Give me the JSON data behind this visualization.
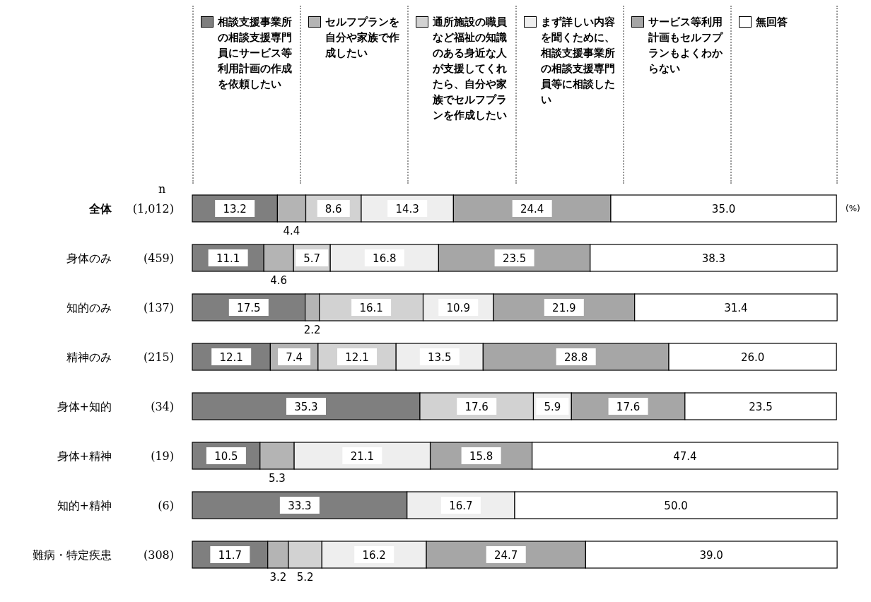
{
  "chart_data": {
    "type": "bar",
    "orientation": "horizontal",
    "stacked": true,
    "legend": "top",
    "tick_labels": "y",
    "xlim": [
      0,
      100
    ],
    "categories": [
      "全体 (1,012)",
      "身体のみ (459)",
      "知的のみ (137)",
      "精神のみ (215)",
      "身体+知的 (34)",
      "身体+精神 (19)",
      "知的+精神 (6)",
      "難病・特定疾患 (308)"
    ],
    "series": [
      {
        "name": "相談支援事業所の相談支援専門員にサービス等利用計画の作成を依頼したい",
        "color": "#7f7f7f",
        "values": [
          13.2,
          11.1,
          17.5,
          12.1,
          35.3,
          10.5,
          33.3,
          11.7
        ],
        "value_labels": [
          "13.2",
          "11.1",
          "17.5",
          "12.1",
          "35.3",
          "10.5",
          "33.3",
          "11.7"
        ]
      },
      {
        "name": "セルフプランを自分や家族で作成したい",
        "color": "#b4b4b4",
        "values": [
          4.4,
          4.6,
          2.2,
          7.4,
          null,
          5.3,
          null,
          3.2
        ],
        "value_labels": [
          "4.4",
          "4.6",
          "2.2",
          "7.4",
          null,
          "5.3",
          null,
          "3.2"
        ]
      },
      {
        "name": "通所施設の職員など福祉の知識のある身近な人が支援してくれたら、自分や家族でセルフプランを作成したい",
        "color": "#d2d2d2",
        "values": [
          8.6,
          5.7,
          16.1,
          12.1,
          17.6,
          null,
          null,
          5.2
        ],
        "value_labels": [
          "8.6",
          "5.7",
          "16.1",
          "12.1",
          "17.6",
          null,
          null,
          "5.2"
        ]
      },
      {
        "name": "まず詳しい内容を聞くために、相談支援事業所の相談支援専門員等に相談したい",
        "color": "#eeeeee",
        "values": [
          14.3,
          16.8,
          10.9,
          13.5,
          5.9,
          21.1,
          16.7,
          16.2
        ],
        "value_labels": [
          "14.3",
          "16.8",
          "10.9",
          "13.5",
          "5.9",
          "21.1",
          "16.7",
          "16.2"
        ]
      },
      {
        "name": "サービス等利用計画もセルフプランもよくわからない",
        "color": "#a6a6a6",
        "values": [
          24.4,
          23.5,
          21.9,
          28.8,
          17.6,
          15.8,
          null,
          24.7
        ],
        "value_labels": [
          "24.4",
          "23.5",
          "21.9",
          "28.8",
          "17.6",
          "15.8",
          null,
          "24.7"
        ]
      },
      {
        "name": "無回答",
        "color": "#ffffff",
        "values": [
          35.0,
          38.3,
          31.4,
          26.0,
          23.5,
          47.4,
          50.0,
          39.0
        ],
        "value_labels": [
          "35.0",
          "38.3",
          "31.4",
          "26.0",
          "23.5",
          "47.4",
          "50.0",
          "39.0"
        ]
      }
    ],
    "annotations": [
      "n",
      "(%)"
    ]
  }
}
